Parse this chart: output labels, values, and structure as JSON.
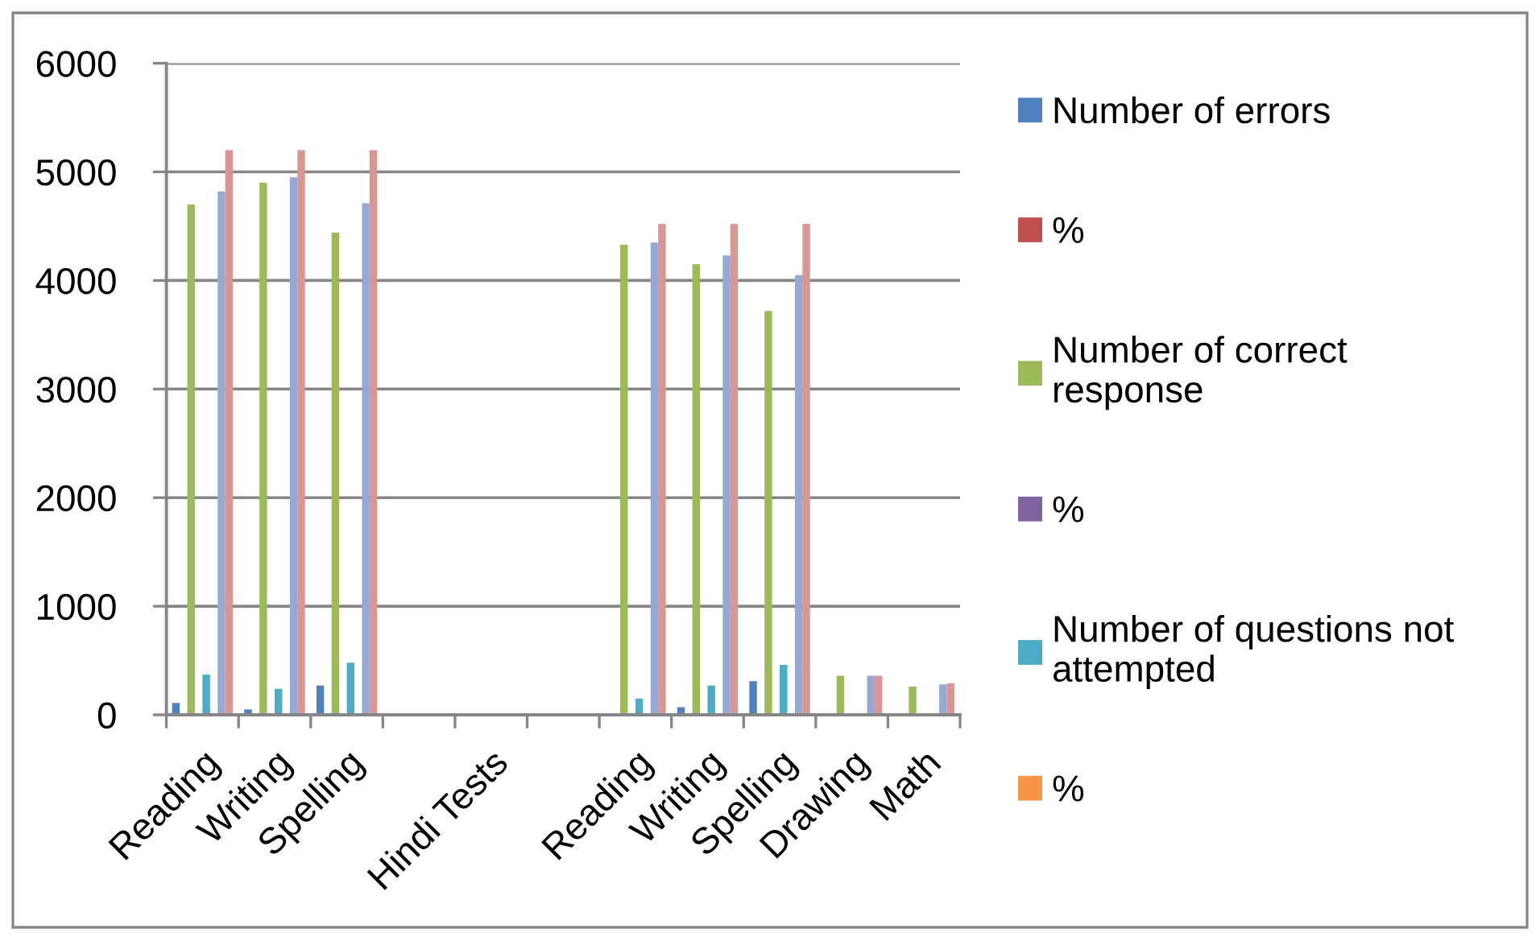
{
  "chart_data": {
    "type": "bar",
    "categories": [
      "Reading",
      "Writing",
      "Spelling",
      null,
      "Hindi Tests",
      null,
      "Reading",
      "Writing",
      "Spelling",
      "Drawing",
      "Math"
    ],
    "series": [
      {
        "name": "Number of errors",
        "color": "#4f81bd",
        "values": [
          110,
          50,
          270,
          null,
          null,
          null,
          10,
          70,
          310,
          null,
          null
        ]
      },
      {
        "name": "%",
        "color": "#c0504d",
        "values": [
          null,
          null,
          null,
          null,
          null,
          null,
          null,
          null,
          null,
          null,
          null
        ]
      },
      {
        "name": "Number of correct response",
        "color": "#9bbb59",
        "values": [
          4700,
          4900,
          4440,
          null,
          null,
          null,
          4330,
          4150,
          3720,
          360,
          260
        ]
      },
      {
        "name": "%",
        "color": "#8064a2",
        "values": [
          null,
          null,
          null,
          null,
          null,
          null,
          null,
          null,
          null,
          null,
          null
        ]
      },
      {
        "name": "Number of questions not attempted",
        "color": "#4bacc6",
        "values": [
          370,
          240,
          480,
          null,
          null,
          null,
          150,
          270,
          460,
          null,
          10
        ]
      },
      {
        "name": "%",
        "color": "#f79646",
        "values": [
          null,
          null,
          null,
          null,
          null,
          null,
          null,
          null,
          null,
          null,
          null
        ]
      },
      {
        "color": "#95a9d3",
        "values": [
          4820,
          4950,
          4710,
          null,
          null,
          null,
          4350,
          4230,
          4050,
          360,
          280
        ]
      },
      {
        "color": "#d99694",
        "values": [
          5200,
          5200,
          5200,
          null,
          null,
          null,
          4520,
          4520,
          4520,
          360,
          290
        ]
      }
    ],
    "ylim": [
      0,
      6000
    ],
    "yticks": [
      0,
      1000,
      2000,
      3000,
      4000,
      5000,
      6000
    ],
    "grid": "y",
    "legend": "right"
  }
}
